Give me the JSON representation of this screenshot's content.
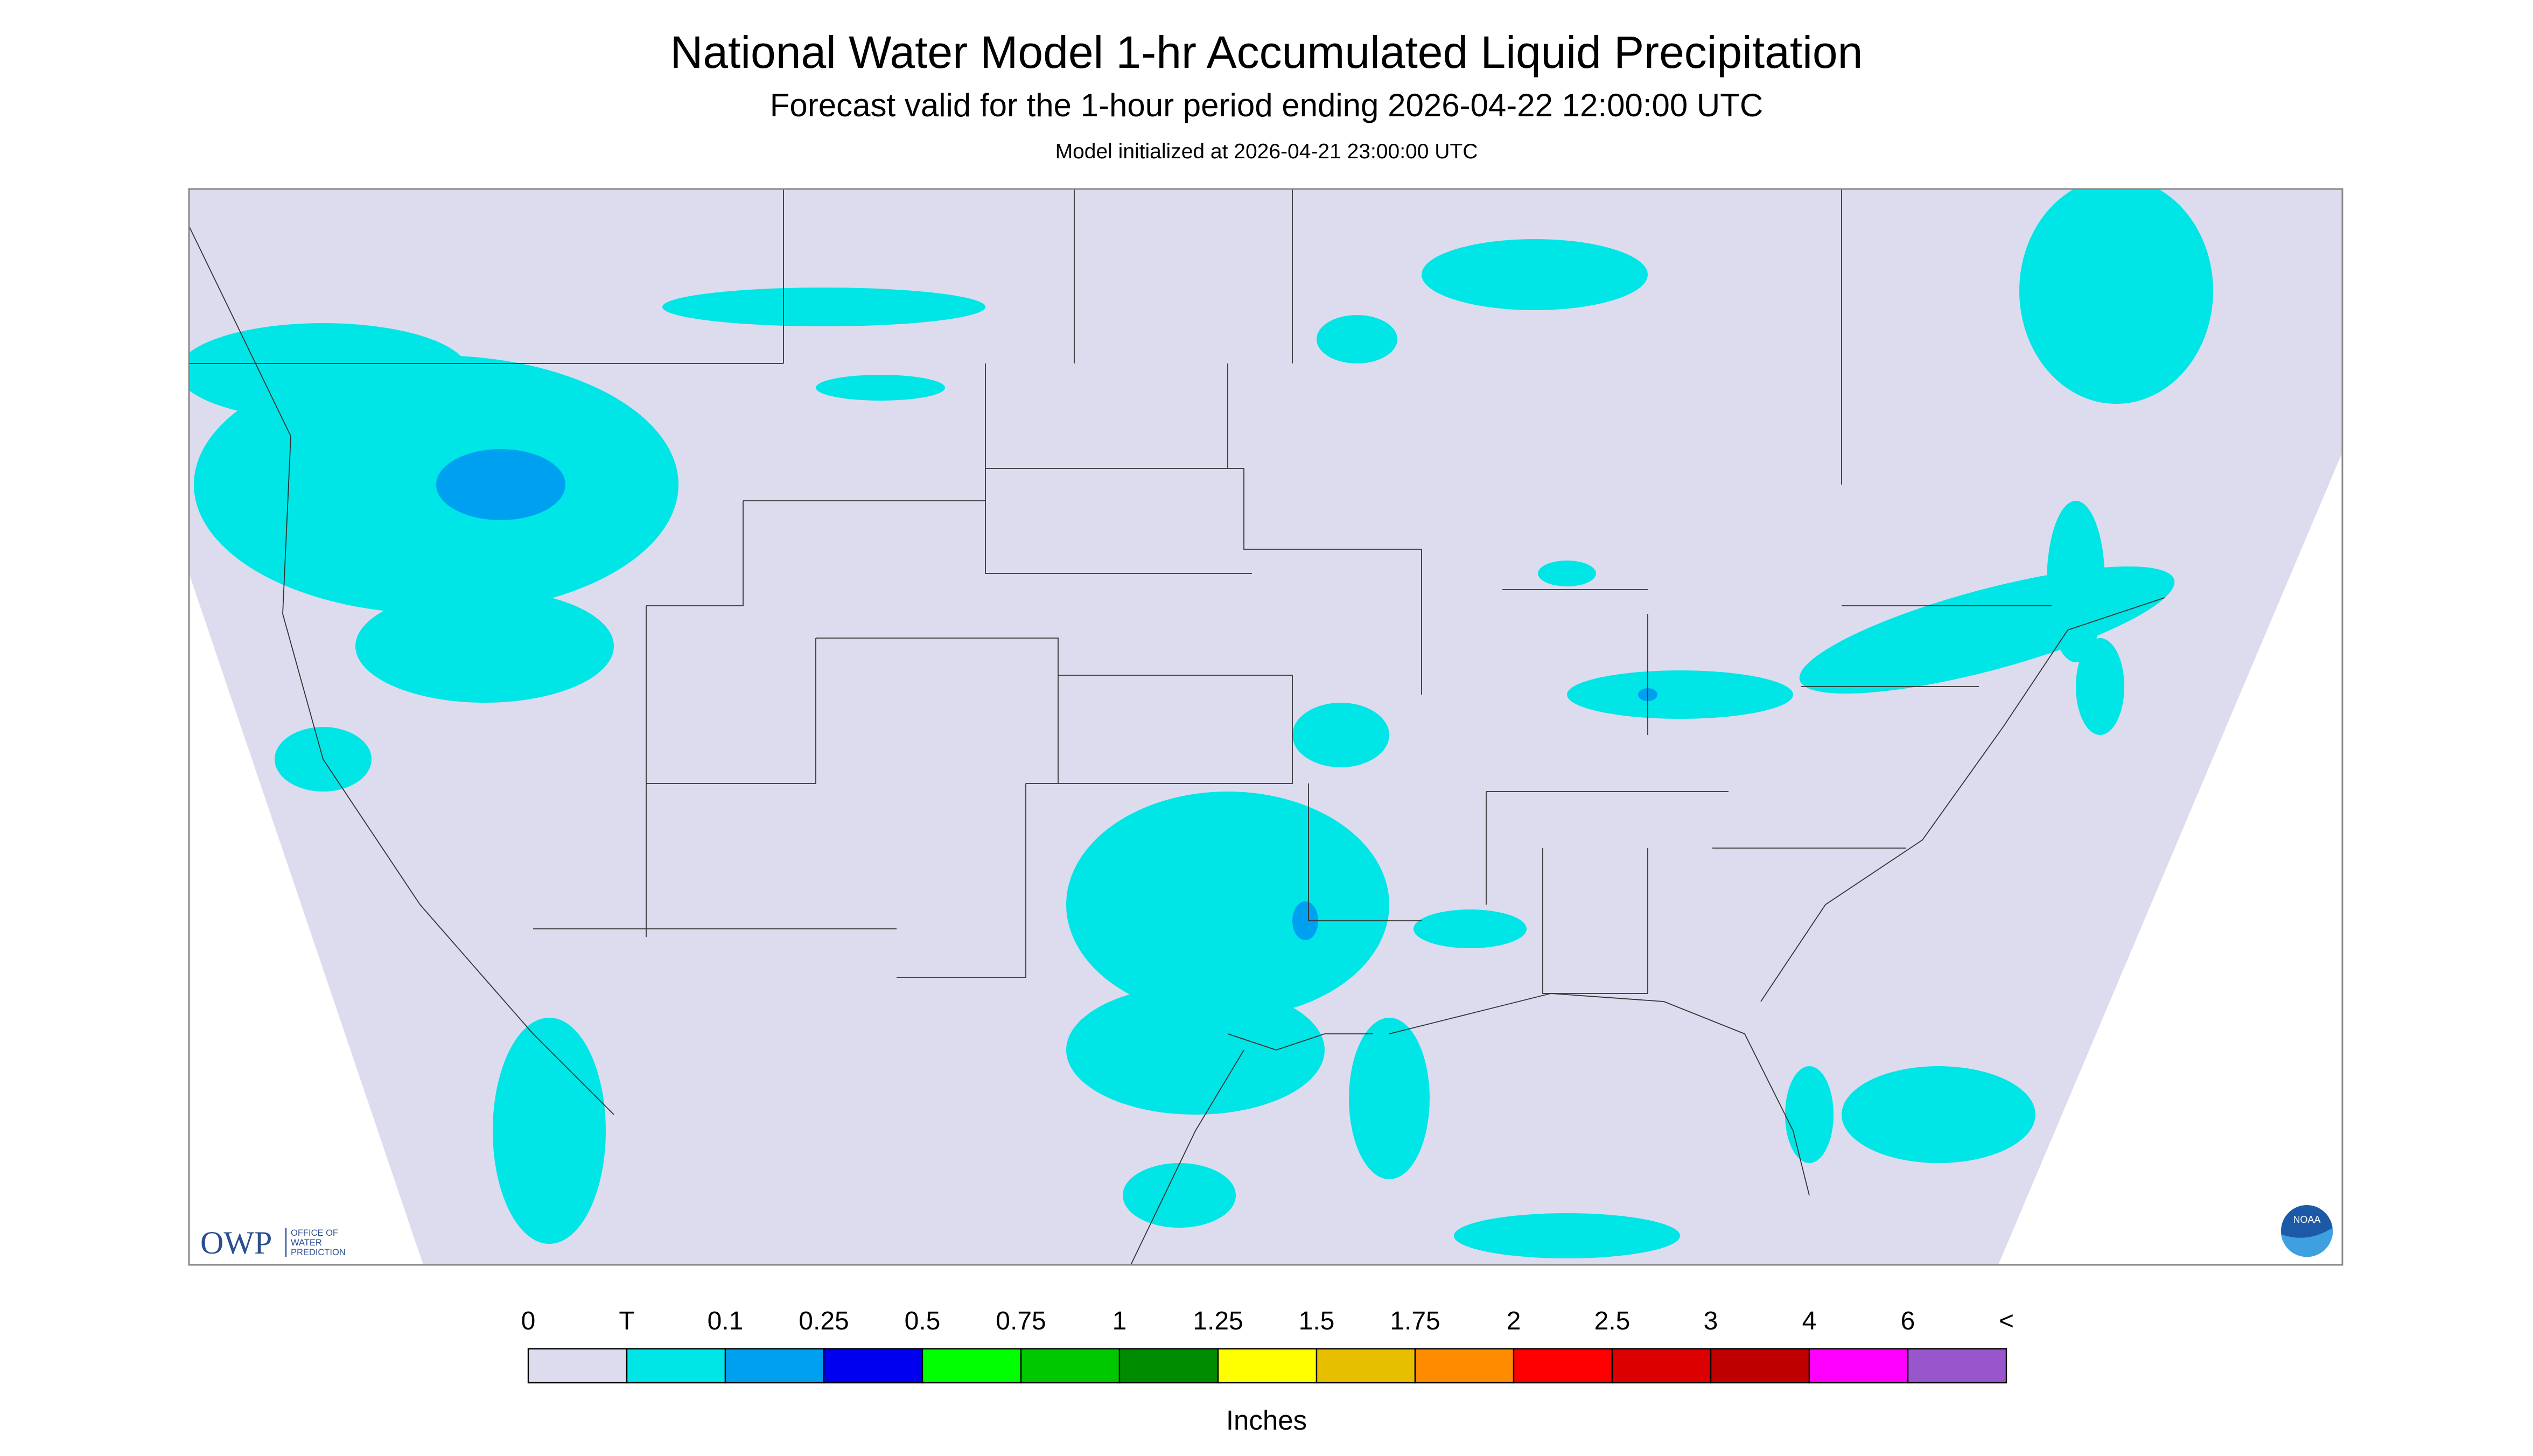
{
  "header": {
    "title": "National Water Model 1-hr Accumulated Liquid Precipitation",
    "subtitle": "Forecast valid for the 1-hour period ending 2026-04-22 12:00:00 UTC",
    "init": "Model initialized at 2026-04-21 23:00:00 UTC"
  },
  "logos": {
    "owp": "OWP",
    "owp_text": [
      "OFFICE OF",
      "WATER",
      "PREDICTION"
    ],
    "noaa": "NOAA"
  },
  "legend": {
    "labels": [
      "0",
      "T",
      "0.1",
      "0.25",
      "0.5",
      "0.75",
      "1",
      "1.25",
      "1.5",
      "1.75",
      "2",
      "2.5",
      "3",
      "4",
      "6",
      "<"
    ],
    "colors": [
      "#dcdcee",
      "#00e5e5",
      "#00a0f0",
      "#0000f0",
      "#00ff00",
      "#00c800",
      "#008c00",
      "#ffff00",
      "#e6c000",
      "#ff8c00",
      "#ff0000",
      "#dc0000",
      "#be0000",
      "#ff00ff",
      "#9955cc"
    ],
    "units": "Inches"
  }
}
